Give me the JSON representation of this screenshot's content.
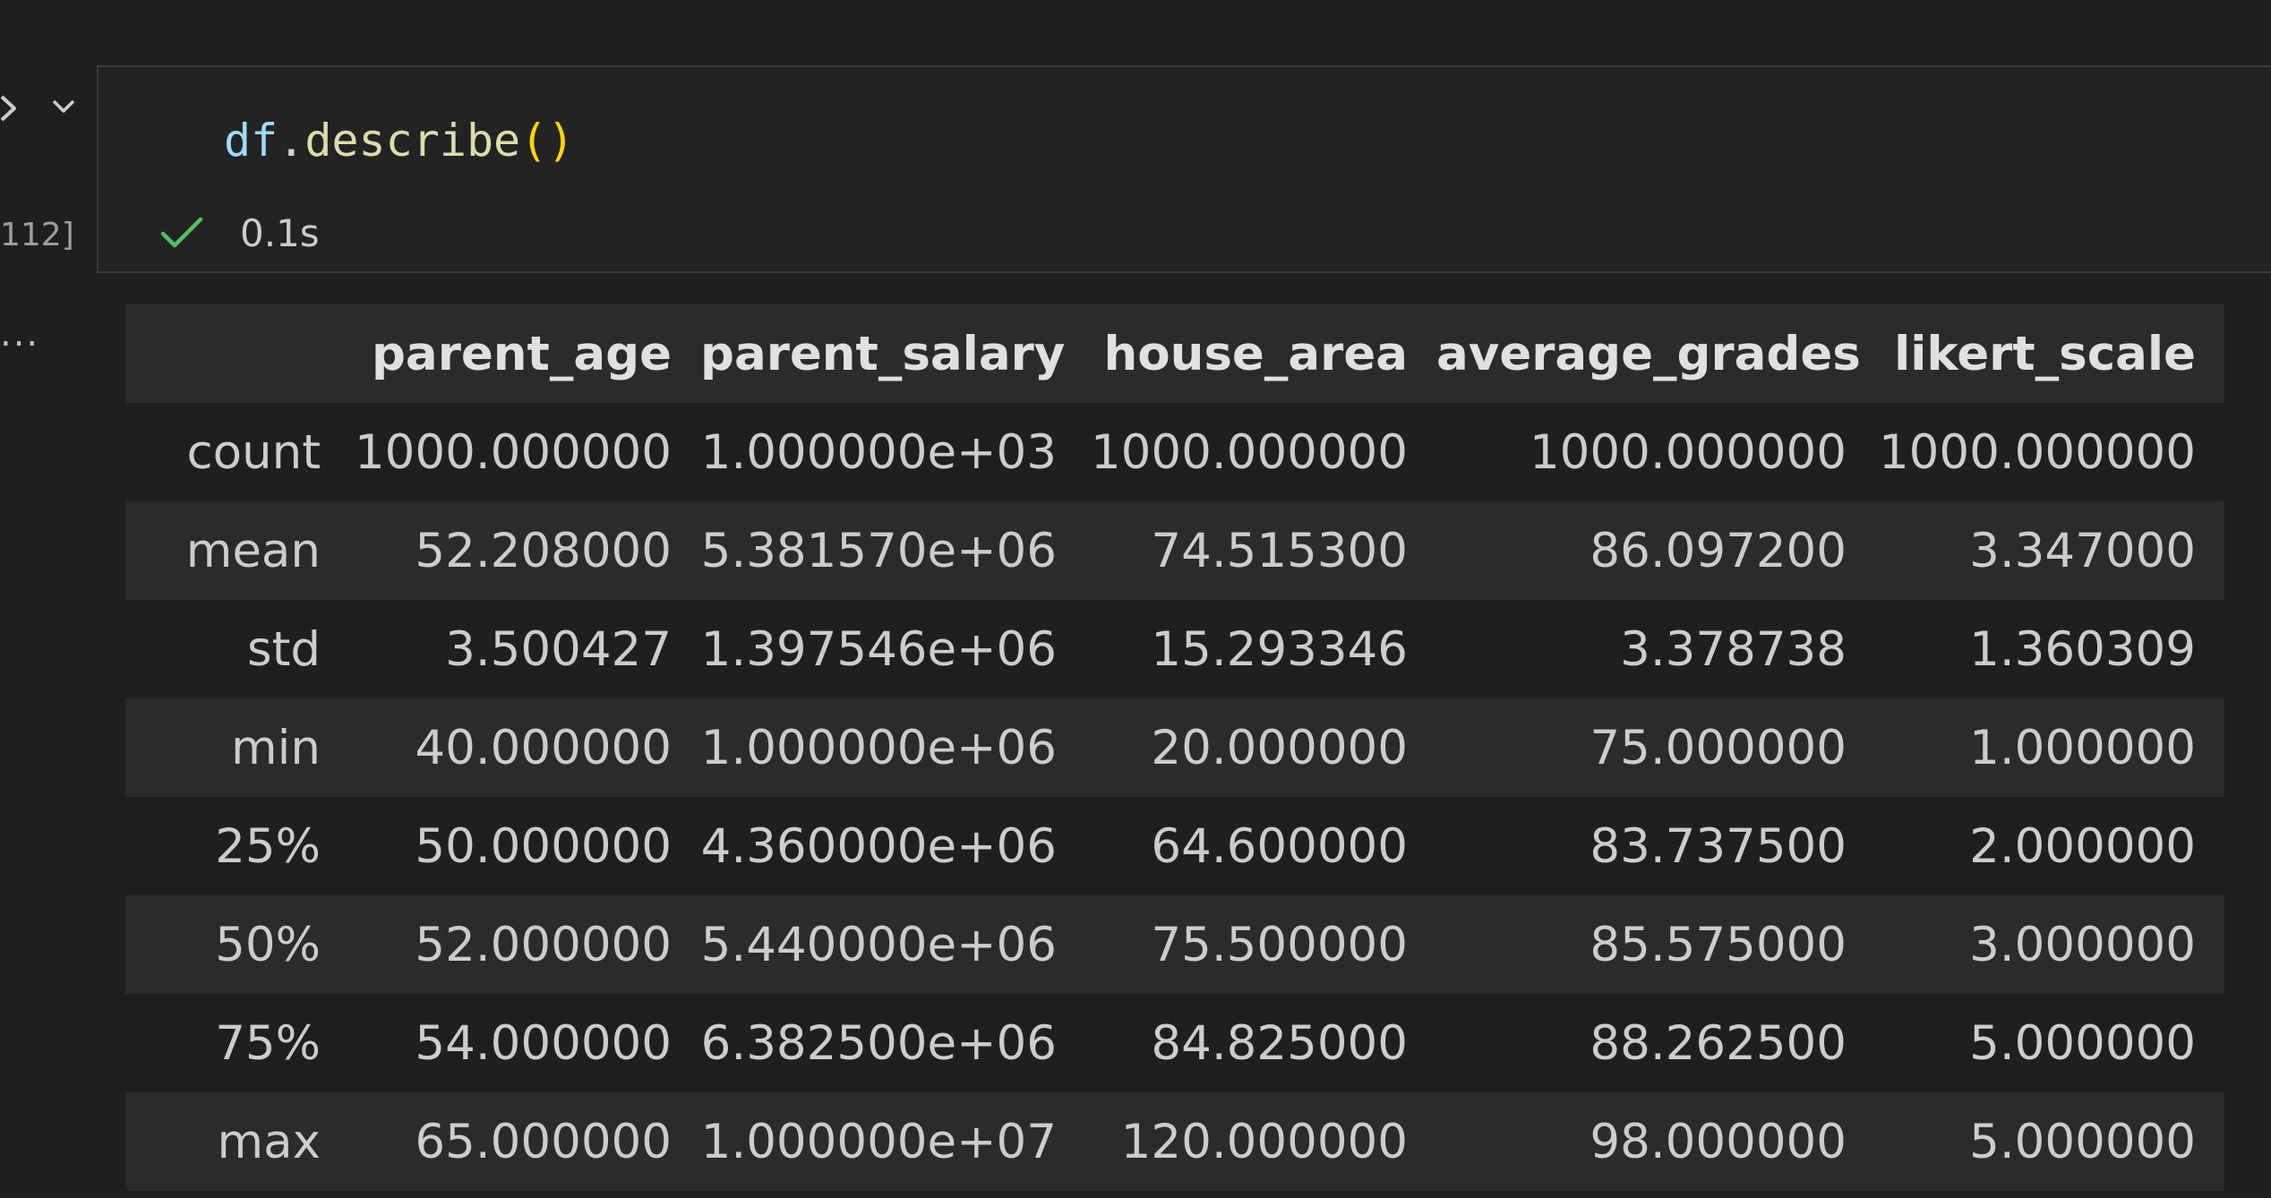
{
  "gutter": {
    "execution_count": "112]",
    "output_menu": "..."
  },
  "cell": {
    "code": {
      "var": "df",
      "dot": ".",
      "func": "describe",
      "parens": "()"
    },
    "status_icon": "check-icon",
    "duration": "0.1s"
  },
  "output": {
    "index_header": "",
    "columns": [
      "parent_age",
      "parent_salary",
      "house_area",
      "average_grades",
      "likert_scale"
    ],
    "rows": [
      {
        "label": "count",
        "values": [
          "1000.000000",
          "1.000000e+03",
          "1000.000000",
          "1000.000000",
          "1000.000000"
        ]
      },
      {
        "label": "mean",
        "values": [
          "52.208000",
          "5.381570e+06",
          "74.515300",
          "86.097200",
          "3.347000"
        ]
      },
      {
        "label": "std",
        "values": [
          "3.500427",
          "1.397546e+06",
          "15.293346",
          "3.378738",
          "1.360309"
        ]
      },
      {
        "label": "min",
        "values": [
          "40.000000",
          "1.000000e+06",
          "20.000000",
          "75.000000",
          "1.000000"
        ]
      },
      {
        "label": "25%",
        "values": [
          "50.000000",
          "4.360000e+06",
          "64.600000",
          "83.737500",
          "2.000000"
        ]
      },
      {
        "label": "50%",
        "values": [
          "52.000000",
          "5.440000e+06",
          "75.500000",
          "85.575000",
          "3.000000"
        ]
      },
      {
        "label": "75%",
        "values": [
          "54.000000",
          "6.382500e+06",
          "84.825000",
          "88.262500",
          "5.000000"
        ]
      },
      {
        "label": "max",
        "values": [
          "65.000000",
          "1.000000e+07",
          "120.000000",
          "98.000000",
          "5.000000"
        ]
      }
    ]
  },
  "colors": {
    "background": "#1f1f1f",
    "cell_background": "#232323",
    "success": "#4ec25a",
    "variable": "#9cdcfe",
    "function": "#dcdcaa",
    "bracket": "#ffd700"
  }
}
